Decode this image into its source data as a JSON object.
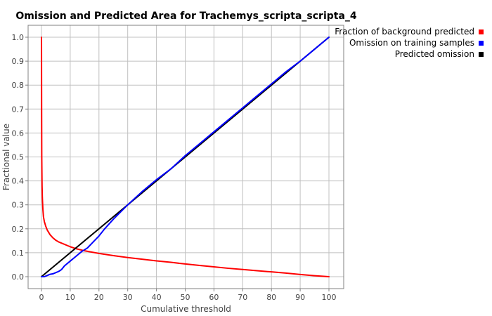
{
  "chart_data": {
    "type": "line",
    "title": "Omission and Predicted Area for Trachemys_scripta_scripta_4",
    "xlabel": "Cumulative threshold",
    "ylabel": "Fractional value",
    "xlim": [
      0,
      100
    ],
    "ylim": [
      0,
      1.0
    ],
    "x_ticks": [
      "0",
      "10",
      "20",
      "30",
      "40",
      "50",
      "60",
      "70",
      "80",
      "90",
      "100"
    ],
    "y_ticks": [
      "0.0",
      "0.1",
      "0.2",
      "0.3",
      "0.4",
      "0.5",
      "0.6",
      "0.7",
      "0.8",
      "0.9",
      "1.0"
    ],
    "grid": true,
    "legend_position": "top-right",
    "series": [
      {
        "name": "Fraction of background predicted",
        "color": "#ff0000",
        "x": [
          0,
          0.05,
          0.1,
          0.2,
          0.3,
          0.5,
          0.7,
          1,
          1.5,
          2,
          3,
          4,
          5,
          6,
          8,
          10,
          12,
          15,
          20,
          25,
          30,
          35,
          40,
          45,
          50,
          55,
          60,
          65,
          70,
          75,
          80,
          85,
          90,
          95,
          100
        ],
        "y": [
          1.0,
          0.7,
          0.5,
          0.38,
          0.33,
          0.28,
          0.25,
          0.23,
          0.21,
          0.195,
          0.175,
          0.162,
          0.152,
          0.145,
          0.135,
          0.125,
          0.117,
          0.108,
          0.097,
          0.088,
          0.08,
          0.073,
          0.066,
          0.06,
          0.053,
          0.047,
          0.041,
          0.035,
          0.03,
          0.025,
          0.02,
          0.015,
          0.009,
          0.004,
          0.0
        ]
      },
      {
        "name": "Omission on training samples",
        "color": "#0000ff",
        "x": [
          0,
          1,
          2,
          3,
          4,
          5,
          6,
          7,
          8,
          10,
          12,
          14,
          16,
          18,
          20,
          22,
          25,
          30,
          35,
          40,
          45,
          50,
          55,
          60,
          65,
          70,
          75,
          80,
          85,
          90,
          95,
          100
        ],
        "y": [
          0.0,
          0.0,
          0.005,
          0.01,
          0.012,
          0.017,
          0.022,
          0.03,
          0.045,
          0.065,
          0.085,
          0.105,
          0.12,
          0.145,
          0.17,
          0.2,
          0.24,
          0.3,
          0.355,
          0.405,
          0.45,
          0.505,
          0.555,
          0.605,
          0.655,
          0.705,
          0.755,
          0.805,
          0.855,
          0.9,
          0.95,
          1.0
        ]
      },
      {
        "name": "Predicted omission",
        "color": "#000000",
        "x": [
          0,
          100
        ],
        "y": [
          0.0,
          1.0
        ]
      }
    ]
  }
}
